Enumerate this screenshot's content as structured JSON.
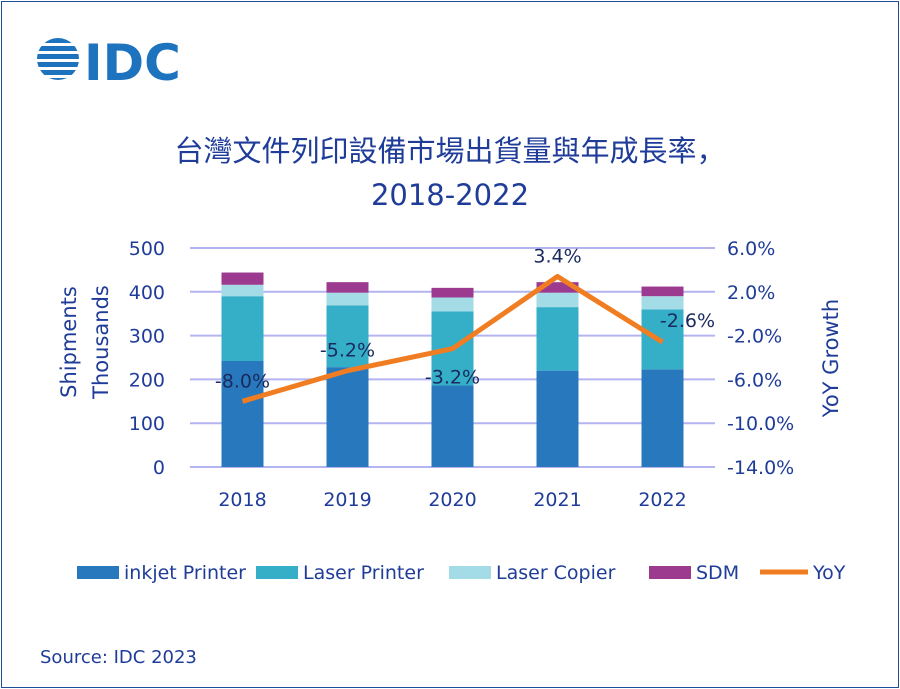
{
  "logo_text": "IDC",
  "title_line1": "台灣文件列印設備市場出貨量與年成長率，",
  "title_line2": "2018-2022",
  "source": "Source: IDC 2023",
  "chart_data": {
    "type": "bar",
    "stacked": true,
    "categories": [
      "2018",
      "2019",
      "2020",
      "2021",
      "2022"
    ],
    "series": [
      {
        "name": "inkjet Printer",
        "values": [
          242,
          228,
          186,
          220,
          223
        ],
        "color": "#2878be"
      },
      {
        "name": "Laser Printer",
        "values": [
          148,
          141,
          169,
          145,
          137
        ],
        "color": "#35aec8"
      },
      {
        "name": "Laser Copier",
        "values": [
          26,
          29,
          32,
          33,
          30
        ],
        "color": "#a3dbe6"
      },
      {
        "name": "SDM",
        "values": [
          28,
          24,
          22,
          24,
          22
        ],
        "color": "#9b3a8f"
      }
    ],
    "line_series": {
      "name": "YoY",
      "values": [
        -8.0,
        -5.2,
        -3.2,
        3.4,
        -2.6
      ],
      "labels": [
        "-8.0%",
        "-5.2%",
        "-3.2%",
        "3.4%",
        "-2.6%"
      ],
      "color": "#f07d22",
      "axis": "right"
    },
    "ylabel_left": [
      "Shipments",
      "Thousands"
    ],
    "ylabel_right": "YoY Growth",
    "ylim_left": [
      0,
      500
    ],
    "yticks_left": [
      "0",
      "100",
      "200",
      "300",
      "400",
      "500"
    ],
    "ylim_right": [
      -14.0,
      6.0
    ],
    "yticks_right": [
      "-14.0%",
      "-10.0%",
      "-6.0%",
      "-2.0%",
      "2.0%",
      "6.0%"
    ],
    "grid": true,
    "legend_placement": "bottom"
  }
}
